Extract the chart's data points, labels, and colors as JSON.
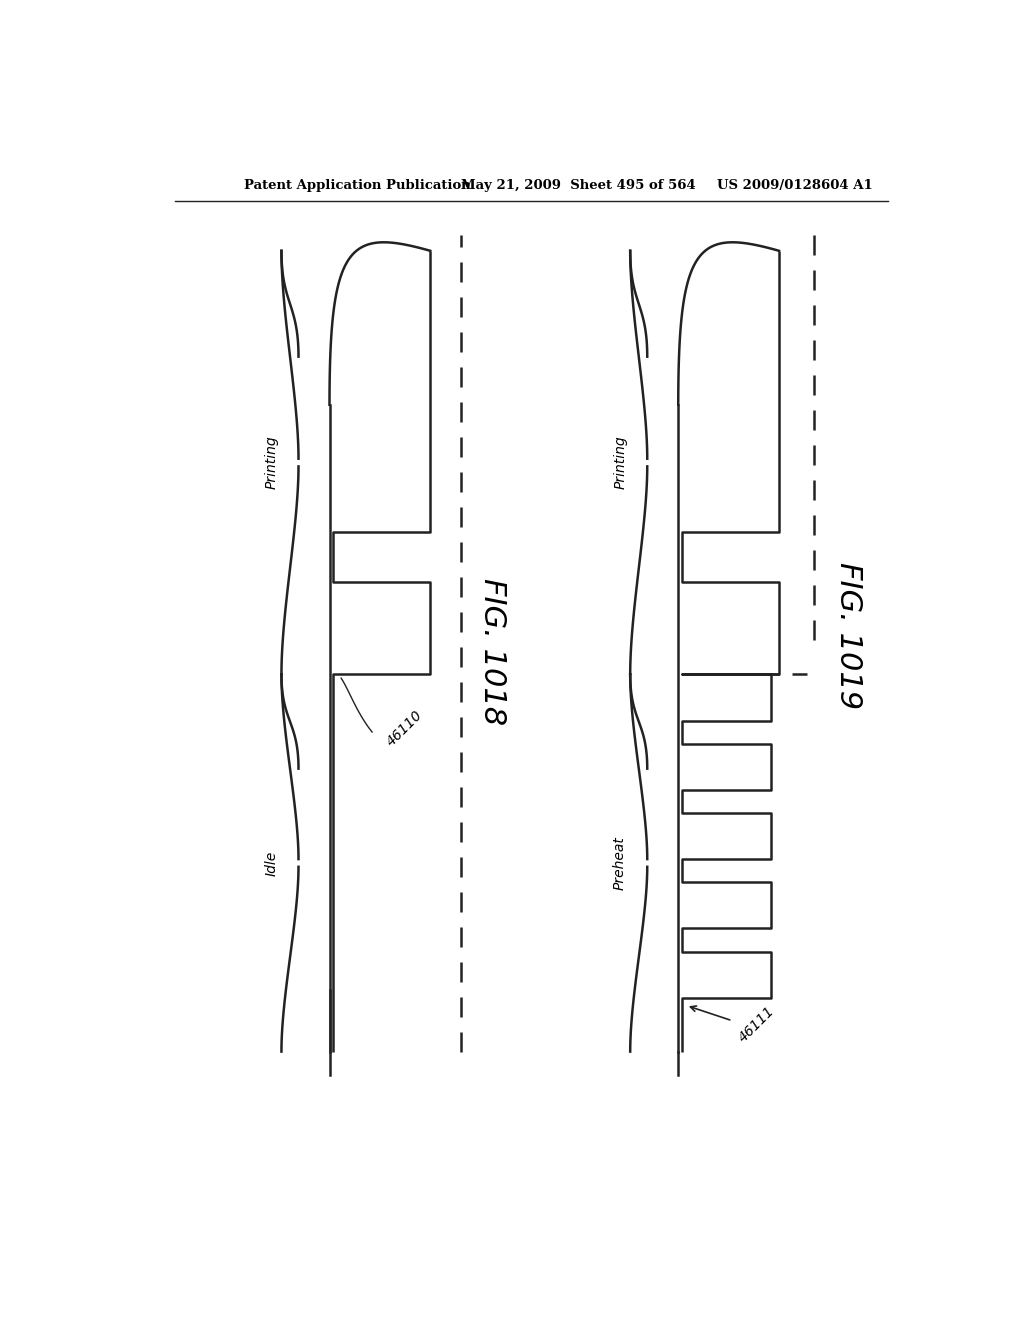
{
  "header_left": "Patent Application Publication",
  "header_middle": "May 21, 2009  Sheet 495 of 564",
  "header_right": "US 2009/0128604 A1",
  "fig1_label": "FIG. 1018",
  "fig2_label": "FIG. 1019",
  "label1": "46110",
  "label2": "46111",
  "printing_label": "Printing",
  "idle_label": "Idle",
  "preheat_label": "Preheat",
  "background_color": "#ffffff",
  "line_color": "#222222"
}
